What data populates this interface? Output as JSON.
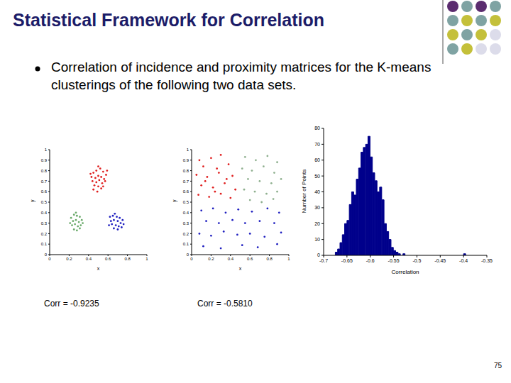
{
  "title": "Statistical Framework for Correlation",
  "text": "Correlation of incidence and proximity matrices for the K-means clusterings of the following two data sets.",
  "page": 75,
  "chart_data": [
    {
      "type": "scatter",
      "x_label": "x",
      "y_label": "y",
      "xlim": [
        0,
        1
      ],
      "ylim": [
        0,
        1
      ],
      "xticks": [
        0,
        0.2,
        0.4,
        0.6,
        0.8,
        1
      ],
      "yticks": [
        0,
        0.1,
        0.2,
        0.3,
        0.4,
        0.5,
        0.6,
        0.7,
        0.8,
        0.9,
        1
      ],
      "marker": "circle",
      "annotations": [
        "Corr = -0.9235"
      ],
      "series": [
        {
          "color": "#e02020",
          "values": [
            [
              0.45,
              0.78
            ],
            [
              0.48,
              0.8
            ],
            [
              0.52,
              0.82
            ],
            [
              0.55,
              0.79
            ],
            [
              0.58,
              0.76
            ],
            [
              0.43,
              0.74
            ],
            [
              0.47,
              0.73
            ],
            [
              0.5,
              0.75
            ],
            [
              0.53,
              0.74
            ],
            [
              0.56,
              0.72
            ],
            [
              0.44,
              0.7
            ],
            [
              0.48,
              0.69
            ],
            [
              0.51,
              0.71
            ],
            [
              0.54,
              0.68
            ],
            [
              0.57,
              0.7
            ],
            [
              0.46,
              0.66
            ],
            [
              0.5,
              0.65
            ],
            [
              0.53,
              0.63
            ],
            [
              0.49,
              0.6
            ],
            [
              0.45,
              0.62
            ],
            [
              0.55,
              0.65
            ],
            [
              0.42,
              0.77
            ],
            [
              0.59,
              0.8
            ],
            [
              0.5,
              0.84
            ]
          ]
        },
        {
          "color": "#6aaa6a",
          "values": [
            [
              0.22,
              0.35
            ],
            [
              0.25,
              0.38
            ],
            [
              0.28,
              0.37
            ],
            [
              0.31,
              0.36
            ],
            [
              0.24,
              0.32
            ],
            [
              0.27,
              0.33
            ],
            [
              0.3,
              0.31
            ],
            [
              0.33,
              0.33
            ],
            [
              0.23,
              0.28
            ],
            [
              0.26,
              0.29
            ],
            [
              0.29,
              0.27
            ],
            [
              0.32,
              0.28
            ],
            [
              0.25,
              0.24
            ],
            [
              0.28,
              0.23
            ],
            [
              0.31,
              0.25
            ],
            [
              0.21,
              0.3
            ],
            [
              0.34,
              0.3
            ],
            [
              0.27,
              0.4
            ]
          ]
        },
        {
          "color": "#2020c0",
          "values": [
            [
              0.62,
              0.36
            ],
            [
              0.65,
              0.37
            ],
            [
              0.69,
              0.36
            ],
            [
              0.72,
              0.35
            ],
            [
              0.75,
              0.33
            ],
            [
              0.63,
              0.32
            ],
            [
              0.66,
              0.33
            ],
            [
              0.7,
              0.32
            ],
            [
              0.73,
              0.3
            ],
            [
              0.61,
              0.28
            ],
            [
              0.64,
              0.29
            ],
            [
              0.68,
              0.28
            ],
            [
              0.71,
              0.27
            ],
            [
              0.74,
              0.26
            ],
            [
              0.66,
              0.25
            ],
            [
              0.7,
              0.24
            ],
            [
              0.76,
              0.29
            ],
            [
              0.67,
              0.39
            ]
          ]
        }
      ]
    },
    {
      "type": "scatter",
      "x_label": "x",
      "y_label": "y",
      "xlim": [
        0,
        1
      ],
      "ylim": [
        0,
        1
      ],
      "xticks": [
        0,
        0.2,
        0.4,
        0.6,
        0.8,
        1
      ],
      "yticks": [
        0,
        0.1,
        0.2,
        0.3,
        0.4,
        0.5,
        0.6,
        0.7,
        0.8,
        0.9,
        1
      ],
      "marker": "circle",
      "annotations": [
        "Corr = -0.5810"
      ],
      "series": [
        {
          "color": "#e02020",
          "values": [
            [
              0.08,
              0.9
            ],
            [
              0.2,
              0.92
            ],
            [
              0.3,
              0.95
            ],
            [
              0.12,
              0.84
            ],
            [
              0.26,
              0.82
            ],
            [
              0.38,
              0.86
            ],
            [
              0.05,
              0.76
            ],
            [
              0.16,
              0.74
            ],
            [
              0.28,
              0.78
            ],
            [
              0.42,
              0.75
            ],
            [
              0.1,
              0.66
            ],
            [
              0.22,
              0.64
            ],
            [
              0.34,
              0.68
            ],
            [
              0.45,
              0.62
            ],
            [
              0.07,
              0.57
            ],
            [
              0.18,
              0.55
            ],
            [
              0.3,
              0.58
            ],
            [
              0.4,
              0.54
            ],
            [
              0.14,
              0.7
            ],
            [
              0.36,
              0.72
            ],
            [
              0.24,
              0.6
            ]
          ]
        },
        {
          "color": "#8fb08f",
          "values": [
            [
              0.55,
              0.93
            ],
            [
              0.66,
              0.9
            ],
            [
              0.78,
              0.94
            ],
            [
              0.88,
              0.88
            ],
            [
              0.52,
              0.82
            ],
            [
              0.62,
              0.8
            ],
            [
              0.74,
              0.84
            ],
            [
              0.85,
              0.78
            ],
            [
              0.58,
              0.72
            ],
            [
              0.7,
              0.7
            ],
            [
              0.82,
              0.68
            ],
            [
              0.92,
              0.72
            ],
            [
              0.54,
              0.62
            ],
            [
              0.65,
              0.6
            ],
            [
              0.77,
              0.58
            ],
            [
              0.88,
              0.6
            ],
            [
              0.6,
              0.52
            ],
            [
              0.72,
              0.5
            ],
            [
              0.84,
              0.53
            ]
          ]
        },
        {
          "color": "#2020c0",
          "values": [
            [
              0.1,
              0.42
            ],
            [
              0.22,
              0.44
            ],
            [
              0.35,
              0.4
            ],
            [
              0.48,
              0.43
            ],
            [
              0.62,
              0.41
            ],
            [
              0.78,
              0.44
            ],
            [
              0.9,
              0.4
            ],
            [
              0.15,
              0.32
            ],
            [
              0.28,
              0.3
            ],
            [
              0.42,
              0.33
            ],
            [
              0.55,
              0.3
            ],
            [
              0.7,
              0.32
            ],
            [
              0.85,
              0.3
            ],
            [
              0.08,
              0.2
            ],
            [
              0.2,
              0.18
            ],
            [
              0.33,
              0.22
            ],
            [
              0.47,
              0.19
            ],
            [
              0.6,
              0.2
            ],
            [
              0.75,
              0.17
            ],
            [
              0.92,
              0.21
            ],
            [
              0.12,
              0.08
            ],
            [
              0.3,
              0.06
            ],
            [
              0.52,
              0.09
            ],
            [
              0.68,
              0.07
            ],
            [
              0.88,
              0.1
            ]
          ]
        }
      ]
    },
    {
      "type": "histogram",
      "x_label": "Correlation",
      "y_label": "Number of Points",
      "color": "#00008b",
      "xlim": [
        -0.7,
        -0.35
      ],
      "xticks": [
        -0.7,
        -0.65,
        -0.6,
        -0.55,
        -0.5,
        -0.45,
        -0.4,
        -0.35
      ],
      "ylim": [
        0,
        80
      ],
      "yticks": [
        0,
        10,
        20,
        30,
        40,
        50,
        60,
        70,
        80
      ],
      "bins": [
        -0.68,
        -0.675,
        -0.67,
        -0.665,
        -0.66,
        -0.655,
        -0.65,
        -0.645,
        -0.64,
        -0.635,
        -0.63,
        -0.625,
        -0.62,
        -0.615,
        -0.61,
        -0.605,
        -0.6,
        -0.595,
        -0.59,
        -0.585,
        -0.58,
        -0.575,
        -0.57,
        -0.565,
        -0.56,
        -0.555,
        -0.55,
        -0.545,
        -0.54,
        -0.535,
        -0.53,
        -0.525,
        -0.52,
        -0.515,
        -0.51,
        -0.505,
        -0.5,
        -0.495,
        -0.49,
        -0.485,
        -0.48,
        -0.475,
        -0.47,
        -0.465,
        -0.46,
        -0.455,
        -0.45,
        -0.445,
        -0.44,
        -0.435,
        -0.43,
        -0.425,
        -0.42,
        -0.415,
        -0.41,
        -0.405,
        -0.4,
        -0.395,
        -0.39
      ],
      "counts": [
        0,
        2,
        4,
        8,
        13,
        20,
        22,
        32,
        40,
        38,
        48,
        55,
        65,
        68,
        70,
        75,
        62,
        52,
        47,
        40,
        43,
        35,
        20,
        15,
        10,
        5,
        3,
        2,
        1,
        0,
        1,
        0,
        0,
        0,
        0,
        0,
        0,
        0,
        0,
        0,
        0,
        0,
        0,
        0,
        0,
        0,
        0,
        0,
        0,
        0,
        0,
        0,
        0,
        0,
        0,
        0,
        1,
        0
      ]
    }
  ]
}
